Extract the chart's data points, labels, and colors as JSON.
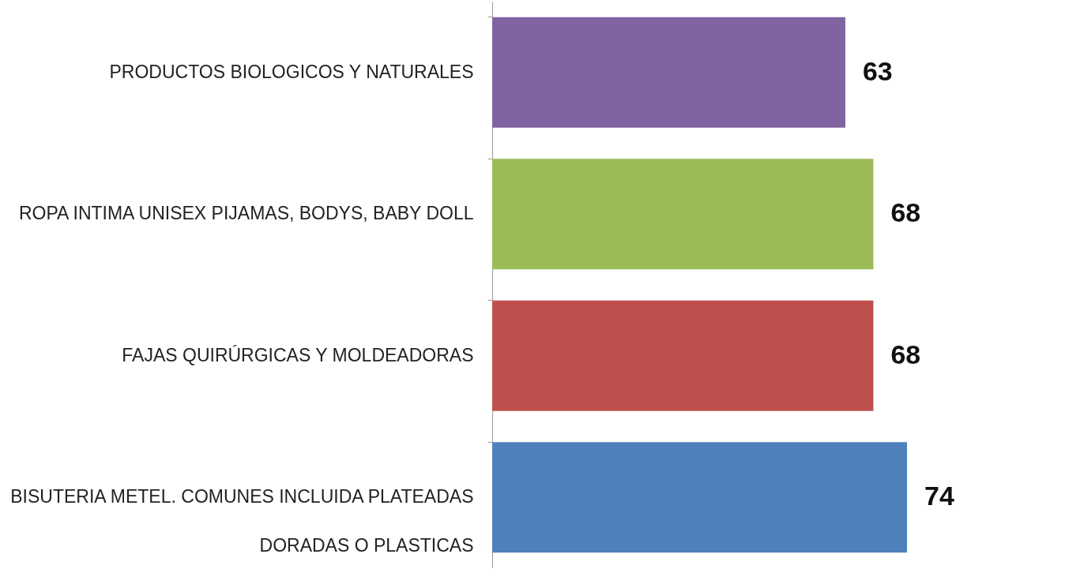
{
  "chart_data": {
    "type": "bar",
    "orientation": "horizontal",
    "categories": [
      "PRODUCTOS BIOLOGICOS Y NATURALES",
      "ROPA INTIMA UNISEX PIJAMAS, BODYS, BABY DOLL",
      "FAJAS QUIRÚRGICAS Y MOLDEADORAS",
      "BISUTERIA METEL. COMUNES INCLUIDA PLATEADAS DORADAS O PLASTICAS"
    ],
    "values": [
      63,
      68,
      68,
      74
    ],
    "colors": [
      "#8064a2",
      "#9bbb59",
      "#c0504d",
      "#4f81bd"
    ],
    "data_labels": true,
    "tick_labels": "y"
  }
}
